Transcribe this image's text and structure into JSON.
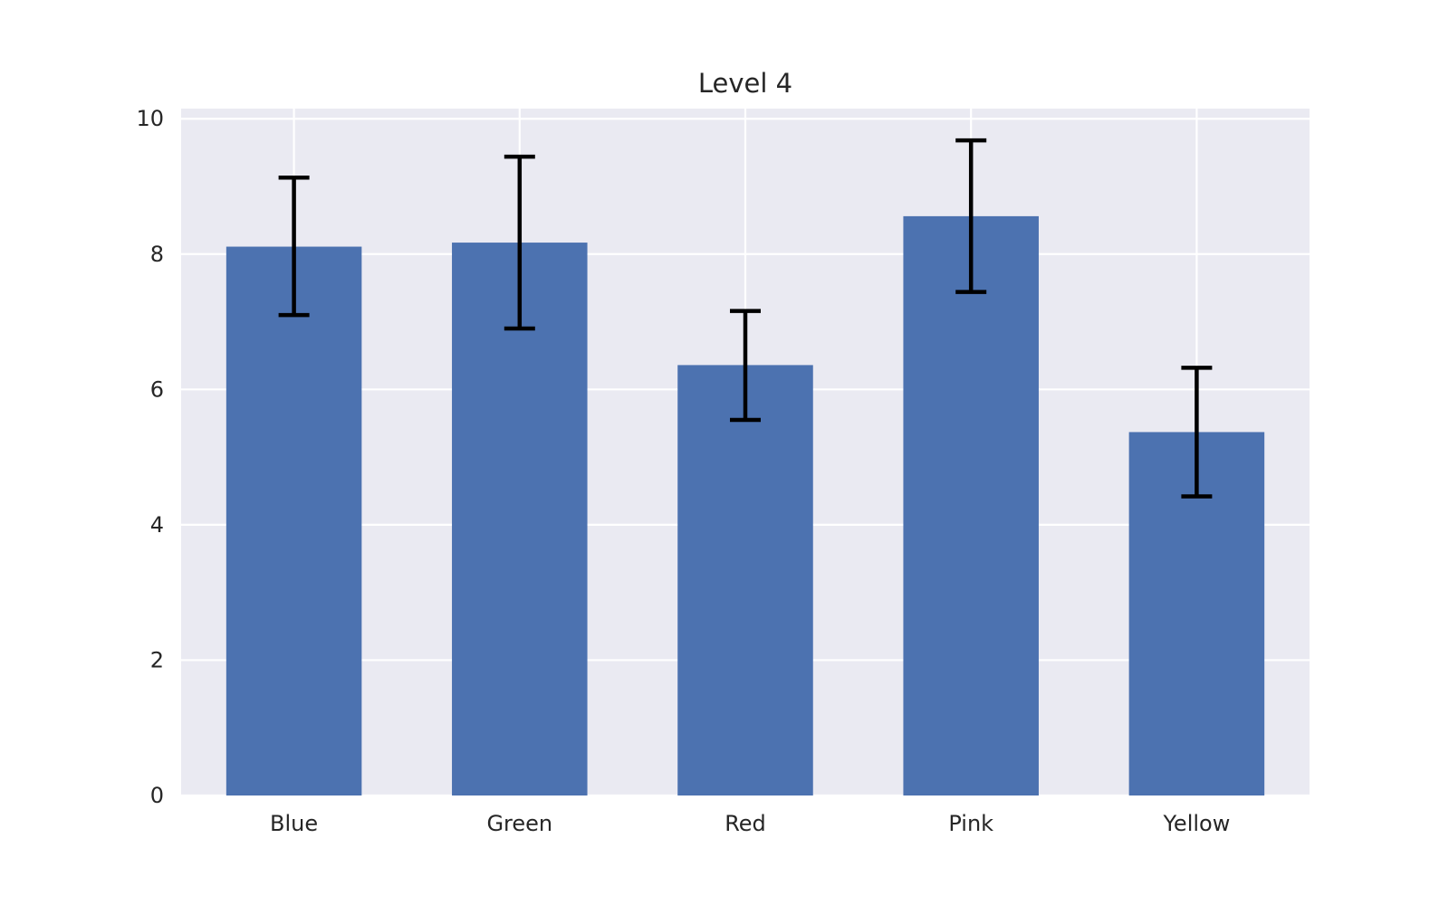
{
  "chart_data": {
    "type": "bar",
    "title": "Level 4",
    "xlabel": "",
    "ylabel": "",
    "categories": [
      "Blue",
      "Green",
      "Red",
      "Pink",
      "Yellow"
    ],
    "values": [
      8.11,
      8.17,
      6.36,
      8.56,
      5.37
    ],
    "errors": [
      {
        "low": 7.1,
        "high": 9.13
      },
      {
        "low": 6.9,
        "high": 9.44
      },
      {
        "low": 5.55,
        "high": 7.16
      },
      {
        "low": 7.44,
        "high": 9.68
      },
      {
        "low": 4.42,
        "high": 6.32
      }
    ],
    "ylim": [
      0,
      10.15
    ],
    "yticks": [
      0,
      2,
      4,
      6,
      8,
      10
    ],
    "grid": true,
    "legend": "none",
    "colors": {
      "bar": "#4c72b0",
      "error_bar": "#000000",
      "plot_background": "#eaeaf2",
      "grid": "#ffffff",
      "text": "#262626"
    }
  }
}
